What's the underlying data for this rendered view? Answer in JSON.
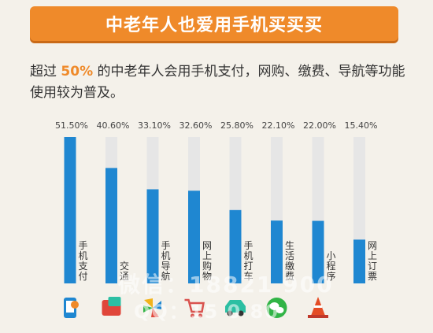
{
  "banner": {
    "title": "中老年人也爱用手机买买买"
  },
  "intro": {
    "before": "超过",
    "highlight": "50%",
    "after": "的中老年人会用手机支付，网购、缴费、导航等功能使用较为普及。"
  },
  "watermark": {
    "line1": "微信：18821 900",
    "line2": "QQ：15 0 80"
  },
  "colors": {
    "bar": "#1f87d1",
    "track": "#e6e6e6",
    "accent": "#ef8a2a"
  },
  "icons": [
    "phone-pay-icon",
    "chat-icon",
    "pinwheel-icon",
    "cart-icon",
    "car-icon",
    "wechat-icon",
    "traffic-cone-icon"
  ],
  "chart_data": {
    "type": "bar",
    "categories": [
      "手机支付",
      "交通",
      "手机导航",
      "网上购物",
      "手机打车",
      "生活缴费",
      "小程序",
      "网上订票"
    ],
    "values": [
      51.5,
      40.6,
      33.1,
      32.6,
      25.8,
      22.1,
      22.0,
      15.4
    ],
    "value_labels": [
      "51.50%",
      "40.60%",
      "33.10%",
      "32.60%",
      "25.80%",
      "22.10%",
      "22.00%",
      "15.40%"
    ],
    "ylim": [
      0,
      51.5
    ]
  }
}
